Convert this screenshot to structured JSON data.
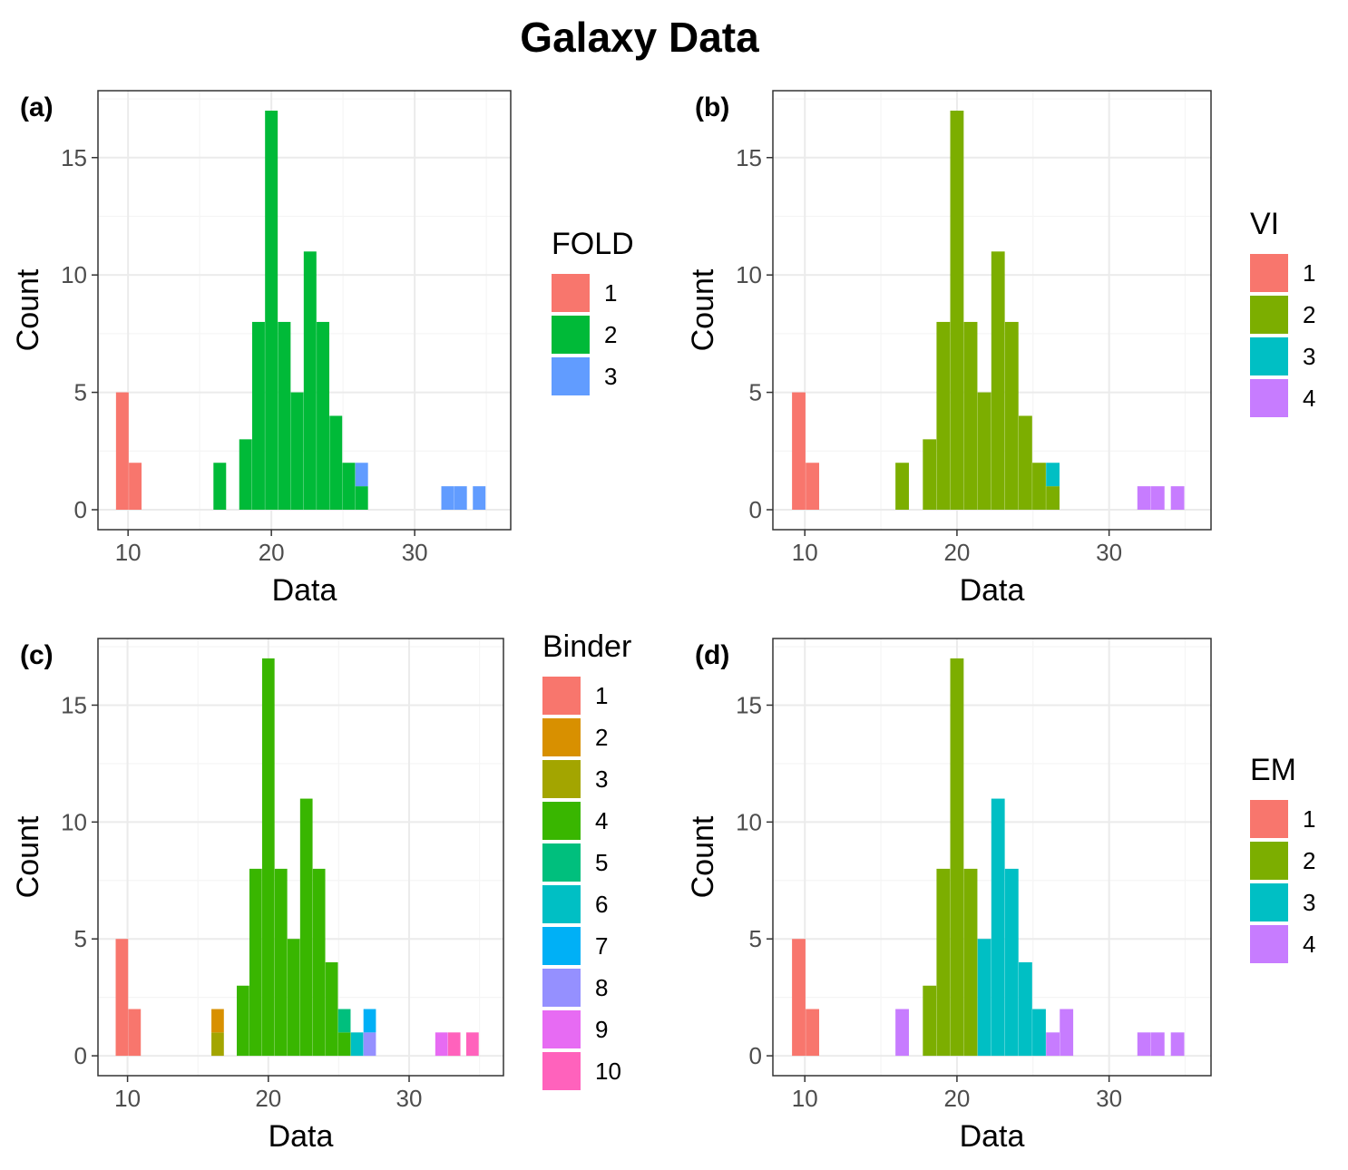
{
  "title": "Galaxy Data",
  "colors": {
    "grid_major": "#ebebeb",
    "grid_minor": "#f5f5f5",
    "panel_border": "#333333",
    "tick_label": "#4d4d4d",
    "palette": {
      "3": [
        "#F8766D",
        "#00BA38",
        "#619CFF"
      ],
      "4": [
        "#F8766D",
        "#7CAE00",
        "#00BFC4",
        "#C77CFF"
      ],
      "10": [
        "#F8766D",
        "#D89000",
        "#A3A500",
        "#39B600",
        "#00BF7D",
        "#00BFC4",
        "#00B0F6",
        "#9590FF",
        "#E76BF3",
        "#FF62BC"
      ]
    }
  },
  "chart_data": [
    {
      "type": "bar",
      "panel_tag": "(a)",
      "xlabel": "Data",
      "ylabel": "Count",
      "x_ticks": [
        10,
        20,
        30
      ],
      "y_ticks": [
        0,
        5,
        10,
        15
      ],
      "xlim": [
        7.9,
        36.7
      ],
      "ylim": [
        -0.85,
        17.85
      ],
      "grid": true,
      "legend": {
        "title": "FOLD",
        "position": "right",
        "labels": [
          "1",
          "2",
          "3"
        ]
      },
      "bin_width": 0.884,
      "bars": [
        {
          "x": 9.6,
          "count": 5,
          "group": 1
        },
        {
          "x": 10.5,
          "count": 2,
          "group": 1
        },
        {
          "x": 16.4,
          "count": 2,
          "group": 2
        },
        {
          "x": 18.2,
          "count": 3,
          "group": 2
        },
        {
          "x": 19.1,
          "count": 8,
          "group": 2
        },
        {
          "x": 20.0,
          "count": 17,
          "group": 2
        },
        {
          "x": 20.9,
          "count": 8,
          "group": 2
        },
        {
          "x": 21.8,
          "count": 5,
          "group": 2
        },
        {
          "x": 22.7,
          "count": 11,
          "group": 2
        },
        {
          "x": 23.6,
          "count": 8,
          "group": 2
        },
        {
          "x": 24.5,
          "count": 4,
          "group": 2
        },
        {
          "x": 25.4,
          "count": 2,
          "group": 2
        },
        {
          "x": 26.3,
          "count": 1,
          "group": 2
        },
        {
          "x": 26.3,
          "count": 1,
          "group": 3
        },
        {
          "x": 32.3,
          "count": 1,
          "group": 3
        },
        {
          "x": 33.2,
          "count": 1,
          "group": 3
        },
        {
          "x": 34.5,
          "count": 1,
          "group": 3
        }
      ]
    },
    {
      "type": "bar",
      "panel_tag": "(b)",
      "xlabel": "Data",
      "ylabel": "Count",
      "x_ticks": [
        10,
        20,
        30
      ],
      "y_ticks": [
        0,
        5,
        10,
        15
      ],
      "xlim": [
        7.9,
        36.7
      ],
      "ylim": [
        -0.85,
        17.85
      ],
      "grid": true,
      "legend": {
        "title": "VI",
        "position": "right",
        "labels": [
          "1",
          "2",
          "3",
          "4"
        ]
      },
      "bin_width": 0.884,
      "bars": [
        {
          "x": 9.6,
          "count": 5,
          "group": 1
        },
        {
          "x": 10.5,
          "count": 2,
          "group": 1
        },
        {
          "x": 16.4,
          "count": 2,
          "group": 2
        },
        {
          "x": 18.2,
          "count": 3,
          "group": 2
        },
        {
          "x": 19.1,
          "count": 8,
          "group": 2
        },
        {
          "x": 20.0,
          "count": 17,
          "group": 2
        },
        {
          "x": 20.9,
          "count": 8,
          "group": 2
        },
        {
          "x": 21.8,
          "count": 5,
          "group": 2
        },
        {
          "x": 22.7,
          "count": 11,
          "group": 2
        },
        {
          "x": 23.6,
          "count": 8,
          "group": 2
        },
        {
          "x": 24.5,
          "count": 4,
          "group": 2
        },
        {
          "x": 25.4,
          "count": 2,
          "group": 2
        },
        {
          "x": 26.3,
          "count": 1,
          "group": 2
        },
        {
          "x": 26.3,
          "count": 1,
          "group": 3
        },
        {
          "x": 32.3,
          "count": 1,
          "group": 4
        },
        {
          "x": 33.2,
          "count": 1,
          "group": 4
        },
        {
          "x": 34.5,
          "count": 1,
          "group": 4
        }
      ]
    },
    {
      "type": "bar",
      "panel_tag": "(c)",
      "xlabel": "Data",
      "ylabel": "Count",
      "x_ticks": [
        10,
        20,
        30
      ],
      "y_ticks": [
        0,
        5,
        10,
        15
      ],
      "xlim": [
        7.9,
        36.7
      ],
      "ylim": [
        -0.85,
        17.85
      ],
      "grid": true,
      "legend": {
        "title": "Binder",
        "position": "right",
        "labels": [
          "1",
          "2",
          "3",
          "4",
          "5",
          "6",
          "7",
          "8",
          "9",
          "10"
        ]
      },
      "bin_width": 0.884,
      "bars": [
        {
          "x": 9.6,
          "count": 5,
          "group": 1
        },
        {
          "x": 10.5,
          "count": 2,
          "group": 1
        },
        {
          "x": 16.4,
          "count": 1,
          "group": 3
        },
        {
          "x": 16.4,
          "count": 1,
          "group": 2
        },
        {
          "x": 18.2,
          "count": 3,
          "group": 4
        },
        {
          "x": 19.1,
          "count": 8,
          "group": 4
        },
        {
          "x": 20.0,
          "count": 17,
          "group": 4
        },
        {
          "x": 20.9,
          "count": 8,
          "group": 4
        },
        {
          "x": 21.8,
          "count": 5,
          "group": 4
        },
        {
          "x": 22.7,
          "count": 11,
          "group": 4
        },
        {
          "x": 23.6,
          "count": 8,
          "group": 4
        },
        {
          "x": 24.5,
          "count": 4,
          "group": 4
        },
        {
          "x": 25.4,
          "count": 1,
          "group": 4
        },
        {
          "x": 25.4,
          "count": 1,
          "group": 5
        },
        {
          "x": 26.3,
          "count": 1,
          "group": 6
        },
        {
          "x": 27.2,
          "count": 1,
          "group": 8
        },
        {
          "x": 27.2,
          "count": 1,
          "group": 7
        },
        {
          "x": 32.3,
          "count": 1,
          "group": 9
        },
        {
          "x": 33.2,
          "count": 1,
          "group": 10
        },
        {
          "x": 34.5,
          "count": 1,
          "group": 10
        }
      ]
    },
    {
      "type": "bar",
      "panel_tag": "(d)",
      "xlabel": "Data",
      "ylabel": "Count",
      "x_ticks": [
        10,
        20,
        30
      ],
      "y_ticks": [
        0,
        5,
        10,
        15
      ],
      "xlim": [
        7.9,
        36.7
      ],
      "ylim": [
        -0.85,
        17.85
      ],
      "grid": true,
      "legend": {
        "title": "EM",
        "position": "right",
        "labels": [
          "1",
          "2",
          "3",
          "4"
        ]
      },
      "bin_width": 0.884,
      "bars": [
        {
          "x": 9.6,
          "count": 5,
          "group": 1
        },
        {
          "x": 10.5,
          "count": 2,
          "group": 1
        },
        {
          "x": 16.4,
          "count": 2,
          "group": 4
        },
        {
          "x": 18.2,
          "count": 3,
          "group": 2
        },
        {
          "x": 19.1,
          "count": 8,
          "group": 2
        },
        {
          "x": 20.0,
          "count": 17,
          "group": 2
        },
        {
          "x": 20.9,
          "count": 8,
          "group": 2
        },
        {
          "x": 20.9,
          "count": 0,
          "group": 3
        },
        {
          "x": 21.8,
          "count": 5,
          "group": 3
        },
        {
          "x": 22.7,
          "count": 11,
          "group": 3
        },
        {
          "x": 23.6,
          "count": 8,
          "group": 3
        },
        {
          "x": 24.5,
          "count": 4,
          "group": 3
        },
        {
          "x": 25.4,
          "count": 2,
          "group": 3
        },
        {
          "x": 26.3,
          "count": 1,
          "group": 4
        },
        {
          "x": 27.2,
          "count": 2,
          "group": 4
        },
        {
          "x": 32.3,
          "count": 1,
          "group": 4
        },
        {
          "x": 33.2,
          "count": 1,
          "group": 4
        },
        {
          "x": 34.5,
          "count": 1,
          "group": 4
        }
      ]
    }
  ]
}
